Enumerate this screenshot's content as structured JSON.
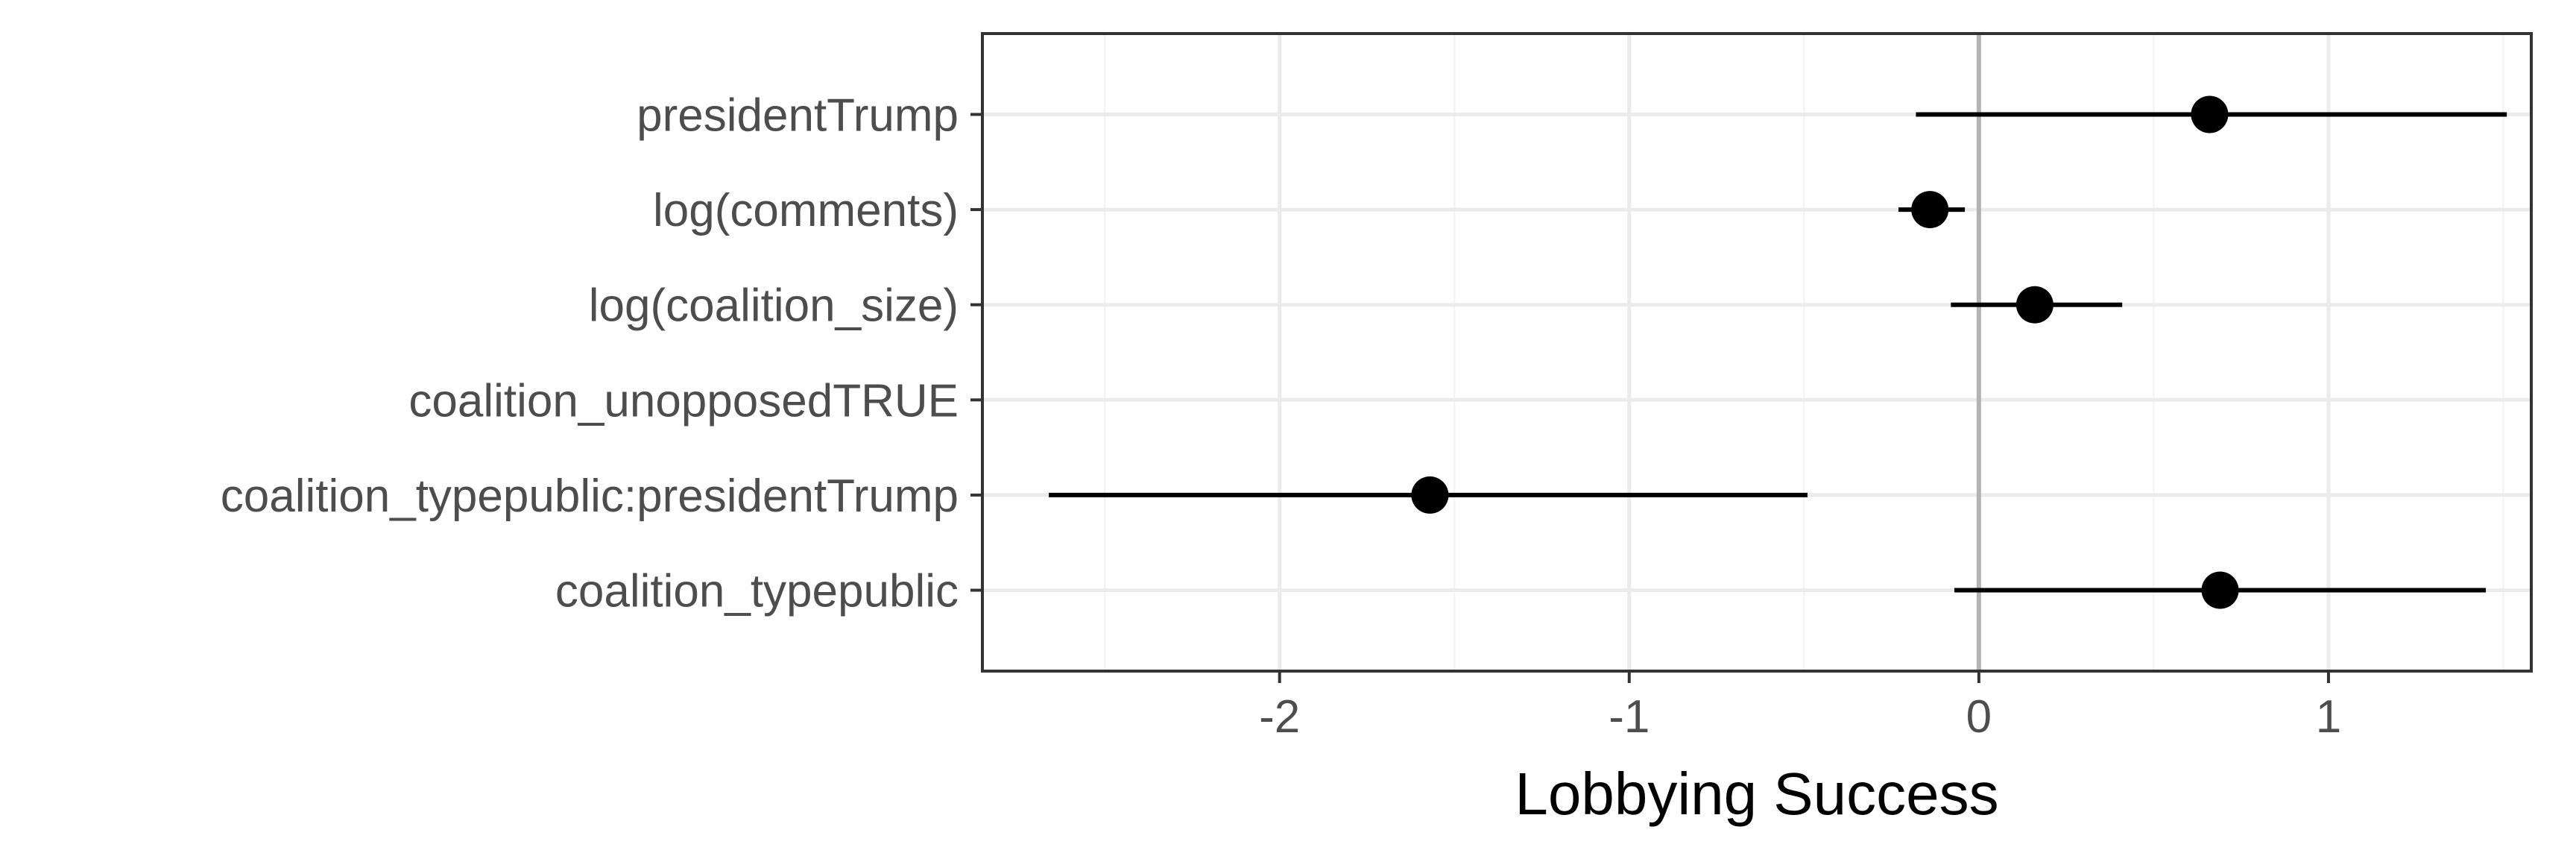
{
  "chart_data": {
    "type": "dot-whisker",
    "xlabel": "Lobbying Success",
    "xlim": [
      -2.85,
      1.58
    ],
    "x_ticks": [
      -2,
      -1,
      0,
      1
    ],
    "x_tick_labels": [
      "-2",
      "-1",
      "0",
      "1"
    ],
    "x_minor_ticks": [
      -2.5,
      -1.5,
      -0.5,
      0.5,
      1.5
    ],
    "reference_line": 0,
    "grid": true,
    "categories": [
      "presidentTrump",
      "log(comments)",
      "log(coalition_size)",
      "coalition_unopposedTRUE",
      "coalition_typepublic:presidentTrump",
      "coalition_typepublic"
    ],
    "estimates": [
      0.66,
      -0.14,
      0.16,
      null,
      -1.57,
      0.69
    ],
    "ci_low": [
      -0.18,
      -0.23,
      -0.08,
      null,
      -2.66,
      -0.07
    ],
    "ci_high": [
      1.51,
      -0.04,
      0.41,
      null,
      -0.49,
      1.45
    ],
    "colors": {
      "point": "#000000",
      "panel_border": "#333333",
      "grid_major": "#ebebeb",
      "grid_minor": "#f4f4f4",
      "reference_line": "#b3b3b3",
      "tick_text": "#4d4d4d"
    }
  }
}
